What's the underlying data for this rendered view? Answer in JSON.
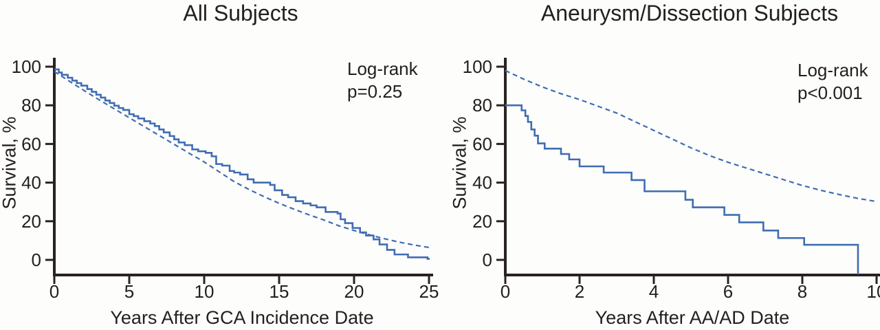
{
  "figure": {
    "background": "#fdfdfb",
    "axis_color": "#2a2220",
    "line_color": "#3f6cb3",
    "text_color": "#231f20"
  },
  "chart_data": [
    {
      "type": "line",
      "title": "All Subjects",
      "annotation_lines": [
        "Log-rank",
        "p=0.25"
      ],
      "xlabel": "Years After GCA Incidence Date",
      "ylabel": "Survival, %",
      "xlim": [
        0,
        25
      ],
      "ylim": [
        0,
        100
      ],
      "xticks": [
        0,
        5,
        10,
        15,
        20,
        25
      ],
      "yticks": [
        0,
        20,
        40,
        60,
        80,
        100
      ],
      "grid": false,
      "legend_position": "none",
      "series": [
        {
          "name": "observed",
          "line": "solid",
          "step": true,
          "extend_to": 25.05,
          "x": [
            0,
            0.3,
            0.5,
            0.9,
            1.2,
            1.5,
            1.8,
            2.2,
            2.5,
            2.8,
            3.1,
            3.4,
            3.7,
            4.0,
            4.3,
            4.6,
            5.0,
            5.3,
            5.6,
            6.0,
            6.4,
            6.7,
            7.0,
            7.3,
            7.7,
            8.0,
            8.3,
            8.7,
            9.2,
            9.6,
            10.1,
            10.5,
            10.8,
            11.2,
            11.7,
            12.0,
            12.4,
            12.9,
            13.3,
            14.4,
            14.7,
            15.2,
            15.6,
            16.1,
            16.6,
            17.1,
            17.5,
            18.1,
            18.9,
            19.1,
            19.4,
            19.9,
            20.4,
            20.8,
            21.3,
            21.7,
            22.2,
            22.7,
            23.6,
            24.9
          ],
          "y": [
            98.6,
            97,
            95.8,
            94.3,
            92.8,
            91.5,
            90.2,
            88.4,
            87,
            85.5,
            84,
            82.5,
            81.2,
            79.8,
            78.6,
            77.6,
            75.4,
            74.4,
            73.2,
            71.8,
            70.6,
            69.3,
            67.5,
            66,
            64.1,
            62.4,
            60.8,
            59.4,
            57.2,
            56.2,
            55.4,
            53.6,
            49.6,
            48.8,
            46,
            45.2,
            44.2,
            41.7,
            40,
            38.8,
            36,
            33.6,
            32.4,
            30.4,
            29.2,
            28.2,
            27.2,
            24.8,
            24,
            21,
            19,
            16.5,
            14.2,
            12.6,
            10.6,
            8,
            5.2,
            2.8,
            1.3,
            0.5
          ]
        },
        {
          "name": "expected",
          "line": "dashed",
          "dashed": true,
          "step": false,
          "x": [
            0,
            1,
            2,
            3,
            4,
            5,
            6,
            7,
            8,
            9,
            10,
            11,
            12,
            13,
            14,
            15,
            16,
            17,
            18,
            19,
            20,
            21,
            22,
            23,
            24,
            25
          ],
          "y": [
            97.5,
            92.5,
            87.6,
            82.8,
            78.2,
            73.6,
            69,
            64.4,
            59.8,
            55.2,
            50.7,
            45.6,
            40.5,
            36.4,
            32.7,
            29.3,
            26.2,
            23.3,
            20.6,
            17.6,
            15.2,
            13,
            11,
            9.2,
            7.7,
            6.4
          ]
        }
      ]
    },
    {
      "type": "line",
      "title": "Aneurysm/Dissection Subjects",
      "annotation_lines": [
        "Log-rank",
        "p<0.001"
      ],
      "xlabel": "Years After AA/AD Date",
      "ylabel": "Survival, %",
      "xlim": [
        0,
        10
      ],
      "ylim": [
        0,
        100
      ],
      "xticks": [
        0,
        2,
        4,
        6,
        8,
        10
      ],
      "yticks": [
        0,
        20,
        40,
        60,
        80,
        100
      ],
      "grid": false,
      "legend_position": "none",
      "series": [
        {
          "name": "observed",
          "line": "solid",
          "step": true,
          "terminal_drop_x": 9.5,
          "x": [
            0,
            0.44,
            0.54,
            0.61,
            0.7,
            0.79,
            0.88,
            1.06,
            1.5,
            1.72,
            2.0,
            2.65,
            3.4,
            3.75,
            4.85,
            5.05,
            5.9,
            6.3,
            6.95,
            7.35,
            8.05
          ],
          "y": [
            80,
            77.4,
            74.5,
            71.4,
            67.5,
            64.3,
            60.3,
            57.6,
            54.8,
            52,
            48.4,
            45.2,
            41.3,
            35.5,
            31.1,
            27.2,
            23.3,
            19.4,
            15.2,
            11.3,
            7.8
          ]
        },
        {
          "name": "expected",
          "line": "dashed",
          "dashed": true,
          "step": false,
          "x": [
            0,
            0.5,
            1,
            1.5,
            2,
            2.5,
            3,
            3.5,
            4,
            4.5,
            5,
            5.5,
            6,
            6.5,
            7,
            7.5,
            8,
            8.5,
            9,
            9.5,
            10
          ],
          "y": [
            98,
            93.5,
            89.5,
            86,
            83,
            79.5,
            76,
            71.5,
            67,
            62.5,
            58,
            54,
            50.5,
            47.5,
            44.5,
            41.5,
            38.5,
            36,
            33.8,
            31.8,
            30.2
          ]
        }
      ]
    }
  ]
}
